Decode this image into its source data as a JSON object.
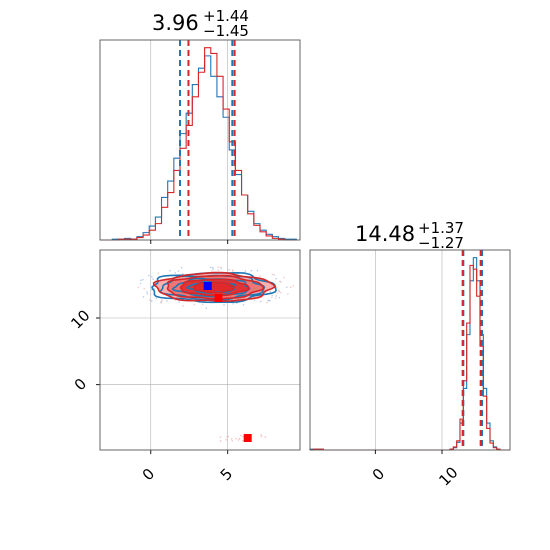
{
  "colors": {
    "blue": "#1f77b4",
    "red": "#d62728",
    "red_fill_light": "#f4a3a3",
    "red_fill_mid": "#ee6b6b",
    "red_fill_dark": "#e0282a",
    "marker_blue": "#0000ff",
    "marker_red": "#ff0000",
    "grid": "#b0b0b0"
  },
  "chart_data": [
    {
      "type": "histogram",
      "panel": "top-left",
      "title": {
        "value": "3.96",
        "sup": "+1.44",
        "sub": "−1.45"
      },
      "xlim": [
        -3.3,
        9.7
      ],
      "grid": true,
      "bins": [
        -3.3,
        -2.9,
        -2.5,
        -2.1,
        -1.7,
        -1.3,
        -0.9,
        -0.5,
        -0.1,
        0.3,
        0.7,
        1.1,
        1.5,
        1.9,
        2.3,
        2.7,
        3.1,
        3.5,
        3.9,
        4.3,
        4.7,
        5.1,
        5.5,
        5.9,
        6.3,
        6.7,
        7.1,
        7.5,
        7.9,
        8.3,
        8.7,
        9.1,
        9.5
      ],
      "series": [
        {
          "color": "blue",
          "counts": [
            0,
            0,
            1,
            1,
            2,
            1,
            4,
            9,
            17,
            28,
            52,
            72,
            100,
            130,
            155,
            190,
            210,
            225,
            200,
            175,
            150,
            110,
            80,
            55,
            35,
            20,
            12,
            7,
            4,
            2,
            1,
            1
          ]
        },
        {
          "color": "red",
          "counts": [
            0,
            0,
            0,
            1,
            1,
            1,
            3,
            6,
            12,
            20,
            40,
            58,
            85,
            112,
            140,
            175,
            205,
            235,
            228,
            200,
            160,
            120,
            85,
            55,
            32,
            18,
            10,
            5,
            2,
            1,
            0,
            0
          ]
        }
      ],
      "vlines": [
        {
          "color": "blue",
          "x": [
            1.9,
            5.3
          ]
        },
        {
          "color": "red",
          "x": [
            2.45,
            5.45
          ]
        }
      ]
    },
    {
      "type": "scatter",
      "panel": "bottom-left",
      "xlim": [
        -3.3,
        9.7
      ],
      "ylim": [
        -9.8,
        20.2
      ],
      "grid": true,
      "xticks": [
        0,
        5
      ],
      "yticks": [
        0,
        10
      ],
      "blue_marker": {
        "x": 3.7,
        "y": 14.8
      },
      "red_markers": [
        {
          "x": 6.3,
          "y": -8.0
        },
        {
          "x": 4.4,
          "y": 13.0
        }
      ],
      "contours": [
        {
          "color": "blue",
          "cx": 4.0,
          "cy": 14.6,
          "rx": [
            4.0,
            3.3,
            2.4,
            1.5
          ],
          "ry": [
            2.2,
            1.8,
            1.3,
            0.8
          ]
        },
        {
          "color": "red",
          "cx": 4.1,
          "cy": 14.6,
          "rx": [
            3.8,
            3.1,
            2.2,
            1.3
          ],
          "ry": [
            2.1,
            1.7,
            1.2,
            0.75
          ]
        }
      ]
    },
    {
      "type": "histogram",
      "panel": "bottom-right",
      "title": {
        "value": "14.48",
        "sup": "+1.37",
        "sub": "−1.27"
      },
      "xlim": [
        -9.8,
        20.2
      ],
      "grid": true,
      "xticks": [
        0,
        10
      ],
      "bins": [
        -9.8,
        -9.3,
        -8.8,
        -8.3,
        -7.8,
        9.2,
        9.7,
        10.2,
        10.7,
        11.2,
        11.7,
        12.2,
        12.7,
        13.2,
        13.7,
        14.2,
        14.7,
        15.2,
        15.7,
        16.2,
        16.7,
        17.2,
        17.7,
        18.2,
        18.7,
        19.2,
        19.7,
        20.2
      ],
      "series": [
        {
          "color": "blue",
          "counts": [
            1,
            1,
            1,
            1,
            0,
            0,
            0,
            0,
            0,
            1,
            3,
            10,
            35,
            80,
            150,
            220,
            250,
            220,
            150,
            80,
            35,
            12,
            4,
            1,
            0,
            0,
            0
          ]
        },
        {
          "color": "red",
          "counts": [
            0,
            1,
            1,
            1,
            0,
            0,
            0,
            0,
            0,
            1,
            4,
            12,
            40,
            90,
            165,
            240,
            235,
            200,
            135,
            70,
            28,
            9,
            3,
            1,
            0,
            0,
            0
          ]
        }
      ],
      "vlines": [
        {
          "color": "blue",
          "x": [
            13.2,
            16.0
          ]
        },
        {
          "color": "red",
          "x": [
            13.1,
            15.8
          ]
        }
      ]
    }
  ]
}
